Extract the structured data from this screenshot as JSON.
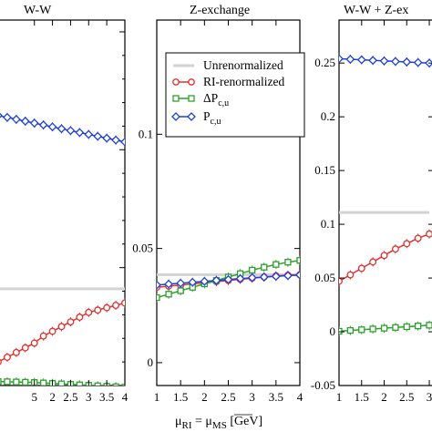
{
  "chart_data": [
    {
      "type": "line",
      "title": "W-W",
      "xlim": [
        0.5,
        4
      ],
      "ylim": [
        0,
        0.155
      ],
      "yticks": [],
      "x": [
        0.5,
        0.75,
        1,
        1.25,
        1.5,
        1.75,
        2,
        2.25,
        2.5,
        2.75,
        3,
        3.25,
        3.5,
        3.75,
        4
      ],
      "series": [
        {
          "name": "Unrenormalized",
          "color": "#d3d3d3",
          "marker": "none",
          "values": [
            0.041,
            0.041,
            0.041,
            0.041,
            0.041,
            0.041,
            0.041,
            0.041,
            0.041,
            0.041,
            0.041,
            0.041,
            0.041,
            0.041,
            0.041
          ]
        },
        {
          "name": "RI-renormalized",
          "color": "#e03030",
          "marker": "circle",
          "values": [
            0.01,
            0.012,
            0.014,
            0.016,
            0.018,
            0.021,
            0.023,
            0.025,
            0.027,
            0.029,
            0.031,
            0.032,
            0.033,
            0.034,
            0.035
          ]
        },
        {
          "name": "ΔPc,u",
          "color": "#2ca02c",
          "marker": "square",
          "values": [
            0.0017,
            0.0016,
            0.0015,
            0.0014,
            0.0013,
            0.0011,
            0.0009,
            0.0007,
            0.0005,
            0.0003,
            0.0001,
            -0.0001,
            -0.0003,
            -0.0005,
            -0.0007
          ]
        },
        {
          "name": "Pc,u",
          "color": "#1f3fd8",
          "marker": "diamond",
          "values": [
            0.1145,
            0.1137,
            0.1129,
            0.1121,
            0.1113,
            0.1105,
            0.1097,
            0.1089,
            0.1081,
            0.1073,
            0.1065,
            0.1057,
            0.1049,
            0.1041,
            0.1033
          ]
        }
      ]
    },
    {
      "type": "line",
      "title": "Z-exchange",
      "xlim": [
        1,
        4
      ],
      "ylim": [
        -0.01,
        0.15
      ],
      "yticks": [
        "0",
        "0.05",
        "0.1"
      ],
      "xticks": [
        "1",
        "1.5",
        "2",
        "2.5",
        "3",
        "3.5",
        "4"
      ],
      "xlabel": "μRI = μMS  [GeV]",
      "x": [
        1,
        1.25,
        1.5,
        1.75,
        2,
        2.25,
        2.5,
        2.75,
        3,
        3.25,
        3.5,
        3.75,
        4
      ],
      "series": [
        {
          "name": "Unrenormalized",
          "color": "#d3d3d3",
          "marker": "none",
          "values": [
            0.0385,
            0.0385,
            0.0385,
            0.0385,
            0.0385,
            0.0385,
            0.0385,
            0.0385,
            0.0385,
            0.0385,
            0.0385,
            0.0385,
            0.0385
          ]
        },
        {
          "name": "RI-renormalized",
          "color": "#e03030",
          "marker": "circle",
          "values": [
            0.033,
            0.0335,
            0.034,
            0.0345,
            0.035,
            0.0355,
            0.036,
            0.0365,
            0.037,
            0.0375,
            0.038,
            0.0383,
            0.0385
          ]
        },
        {
          "name": "ΔPc,u",
          "color": "#2ca02c",
          "marker": "square",
          "values": [
            0.0285,
            0.03,
            0.0315,
            0.033,
            0.0345,
            0.036,
            0.0375,
            0.039,
            0.0405,
            0.0418,
            0.043,
            0.044,
            0.0448
          ]
        },
        {
          "name": "Pc,u",
          "color": "#1f3fd8",
          "marker": "diamond",
          "values": [
            0.034,
            0.0344,
            0.0348,
            0.0352,
            0.0356,
            0.036,
            0.0364,
            0.0368,
            0.0372,
            0.0375,
            0.0378,
            0.0381,
            0.0384
          ]
        }
      ]
    },
    {
      "type": "line",
      "title": "W-W + Z-ex",
      "xlim": [
        1,
        3.1
      ],
      "ylim": [
        -0.05,
        0.29
      ],
      "yticks": [
        "-0.05",
        "0",
        "0.05",
        "0.1",
        "0.15",
        "0.2",
        "0.25"
      ],
      "xticks": [
        "1",
        "1.5",
        "2",
        "2.5",
        "3"
      ],
      "x": [
        1,
        1.25,
        1.5,
        1.75,
        2,
        2.25,
        2.5,
        2.75,
        3
      ],
      "series": [
        {
          "name": "Unrenormalized",
          "color": "#d3d3d3",
          "marker": "none",
          "values": [
            0.111,
            0.111,
            0.111,
            0.111,
            0.111,
            0.111,
            0.111,
            0.111,
            0.111
          ]
        },
        {
          "name": "RI-renormalized",
          "color": "#e03030",
          "marker": "circle",
          "values": [
            0.047,
            0.053,
            0.059,
            0.065,
            0.071,
            0.077,
            0.082,
            0.087,
            0.091
          ]
        },
        {
          "name": "ΔPc,u",
          "color": "#2ca02c",
          "marker": "square",
          "values": [
            0.0005,
            0.0012,
            0.0019,
            0.0026,
            0.0033,
            0.004,
            0.0047,
            0.0054,
            0.0061
          ]
        },
        {
          "name": "Pc,u",
          "color": "#1f3fd8",
          "marker": "diamond",
          "values": [
            0.254,
            0.2535,
            0.253,
            0.2525,
            0.252,
            0.2515,
            0.251,
            0.2505,
            0.25
          ]
        }
      ]
    }
  ],
  "legend": {
    "placement": "top-right of middle panel",
    "entries": [
      {
        "label": "Unrenormalized",
        "color": "#d3d3d3",
        "marker": "none"
      },
      {
        "label": "RI-renormalized",
        "color": "#e03030",
        "marker": "circle"
      },
      {
        "label": "ΔPc,u",
        "color": "#2ca02c",
        "marker": "square"
      },
      {
        "label": "Pc,u",
        "color": "#1f3fd8",
        "marker": "diamond"
      }
    ]
  },
  "panel1_xticks": [
    "5",
    "2",
    "2.5",
    "3",
    "3.5",
    "4"
  ],
  "axis_label_parts": {
    "mu": "μ",
    "sub_ri": "RI",
    "eq": " = μ",
    "sub_ms": "MS",
    "unit": "  [GeV]"
  }
}
